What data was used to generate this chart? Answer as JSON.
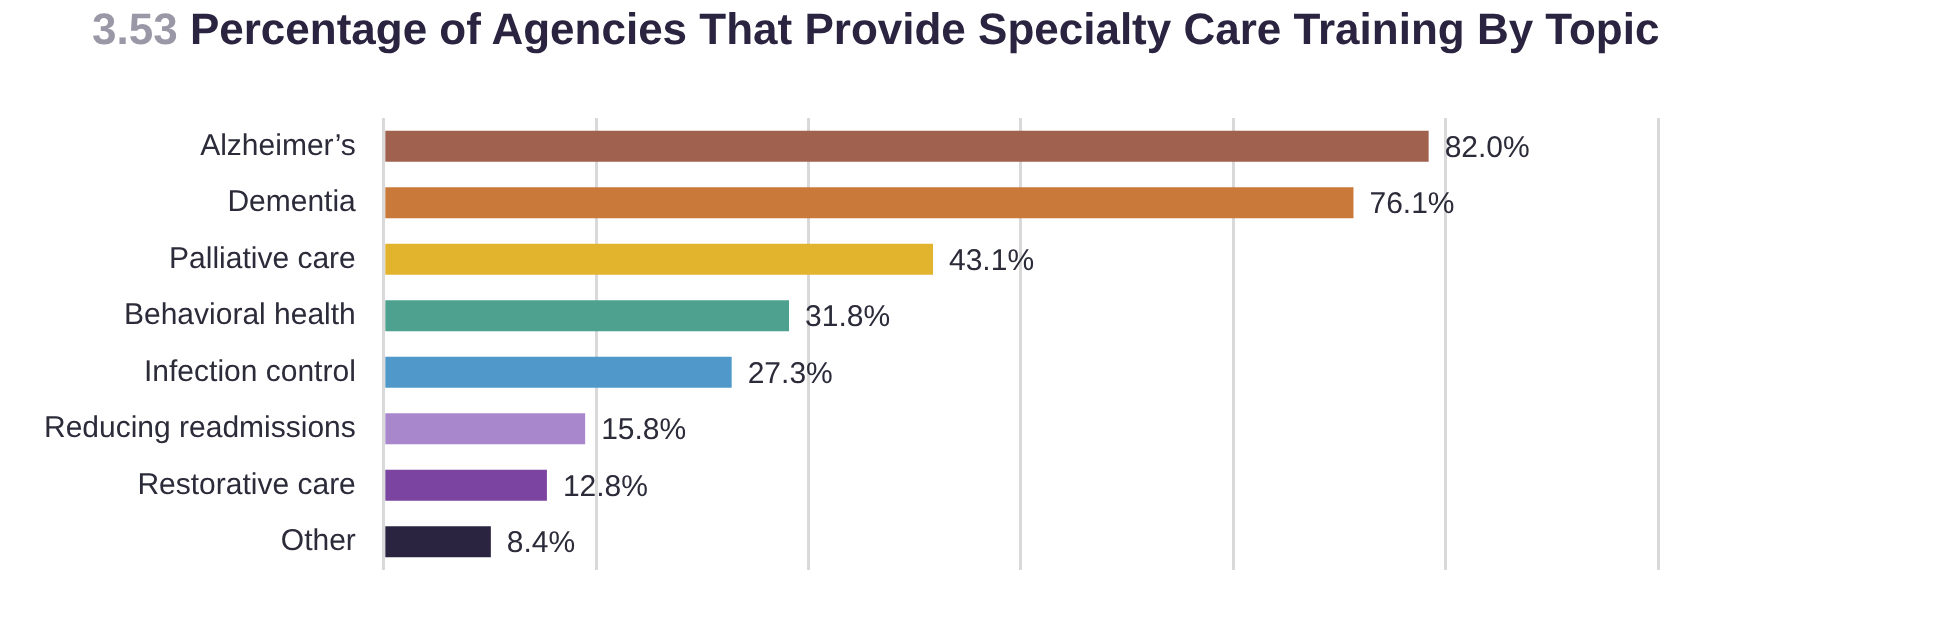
{
  "chart_data": {
    "type": "bar",
    "orientation": "horizontal",
    "title": "3.53 Percentage of Agencies That Provide Specialty Care Training By Topic",
    "categories": [
      "Alzheimer’s",
      "Dementia",
      "Palliative care",
      "Behavioral health",
      "Infection control",
      "Reducing readmissions",
      "Restorative care",
      "Other"
    ],
    "values": [
      82.0,
      76.1,
      43.1,
      31.8,
      27.3,
      15.8,
      12.8,
      8.4
    ],
    "value_labels": [
      "82.0%",
      "76.1%",
      "43.1%",
      "31.8%",
      "27.3%",
      "15.8%",
      "12.8%",
      "8.4%"
    ],
    "colors": [
      "#a0614e",
      "#c97a3a",
      "#e2b32c",
      "#4ea18f",
      "#4f98c9",
      "#a887cc",
      "#7b44a0",
      "#2b2440"
    ],
    "xlim": [
      0,
      100
    ],
    "xticks": [
      {
        "value": 0,
        "label": null
      },
      {
        "value": 16.67,
        "label": null
      },
      {
        "value": 33.33,
        "label": null
      },
      {
        "value": 50,
        "label": null
      },
      {
        "value": 66.67,
        "label": null
      },
      {
        "value": 83.33,
        "label": null
      },
      {
        "value": 100,
        "label": null
      }
    ],
    "grid": "x",
    "tick_labels": "y",
    "legend": false
  }
}
